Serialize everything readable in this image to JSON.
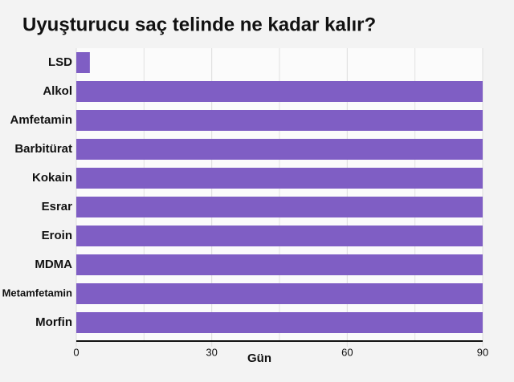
{
  "chart_data": {
    "type": "bar",
    "orientation": "horizontal",
    "title": "Uyuşturucu saç telinde ne kadar kalır?",
    "categories": [
      "LSD",
      "Alkol",
      "Amfetamin",
      "Barbitürat",
      "Kokain",
      "Esrar",
      "Eroin",
      "MDMA",
      "Metamfetamin",
      "Morfin"
    ],
    "values": [
      3,
      90,
      90,
      90,
      90,
      90,
      90,
      90,
      90,
      90
    ],
    "color": "#7f5ec4",
    "xlabel": "Gün",
    "xlim": [
      0,
      90
    ],
    "xticks": [
      0,
      30,
      60,
      90
    ],
    "minor_xticks": [
      15,
      45,
      75
    ],
    "grid": true
  }
}
